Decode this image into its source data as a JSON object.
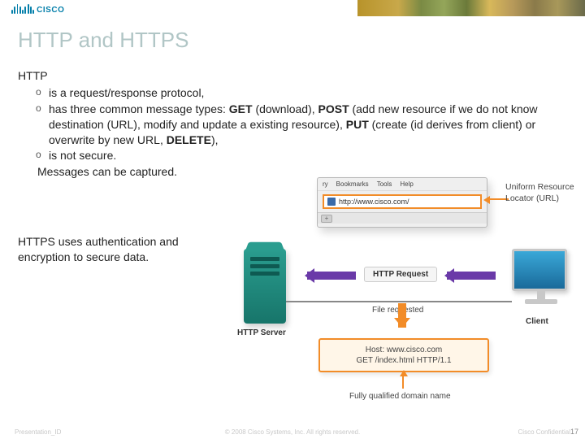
{
  "logo_text": "CISCO",
  "title": "HTTP and HTTPS",
  "http_lead": "HTTP",
  "bullets": [
    "is a request/response protocol,",
    "has three common message types: <b>GET</b> (download), <b>POST</b> (add new resource if we do not know destination (URL), modify and update a existing resource), <b>PUT</b> (create (id derives from client) or overwrite by new URL, <b>DELETE</b>),",
    "is not secure."
  ],
  "sub_line": "Messages can be captured.",
  "https_text": "HTTPS uses authentication and encryption to secure data.",
  "browser": {
    "menu": [
      "ry",
      "Bookmarks",
      "Tools",
      "Help"
    ],
    "url": "http://www.cisco.com/"
  },
  "labels": {
    "url": "Uniform Resource Locator (URL)",
    "server": "HTTP Server",
    "client": "Client",
    "request": "HTTP Request",
    "file_requested": "File requested",
    "host_line1": "Host: www.cisco.com",
    "host_line2": "GET /index.html HTTP/1.1",
    "fqdn": "Fully qualified domain name"
  },
  "footer": {
    "left": "Presentation_ID",
    "mid": "© 2008 Cisco Systems, Inc. All rights reserved.",
    "right": "Cisco Confidential",
    "page": "17"
  },
  "colors": {
    "title": "#b1c6c6",
    "accent_orange": "#f28c28",
    "accent_purple": "#6a3aa8",
    "server": "#2a9d8f"
  }
}
